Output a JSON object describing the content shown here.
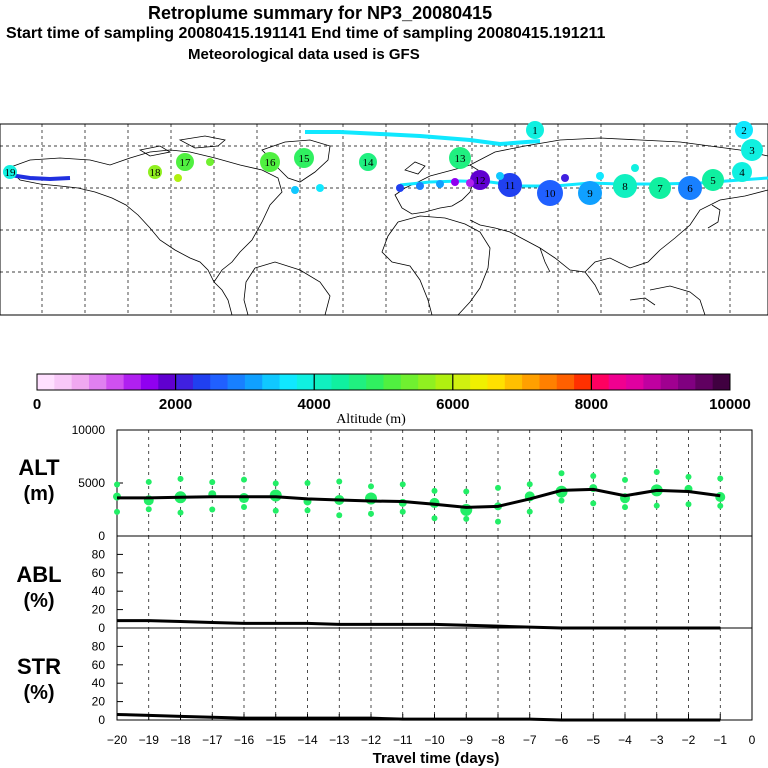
{
  "header": {
    "title": "Retroplume summary for NP3_20080415",
    "sampling_line": "Start time of sampling 20080415.191141     End time of sampling 20080415.191211",
    "met_line": "Meteorological data used is GFS"
  },
  "colorbar": {
    "label": "Altitude (m)",
    "ticks": [
      "0",
      "2000",
      "4000",
      "6000",
      "8000",
      "10000"
    ],
    "colors": [
      "#ffe0ff",
      "#f8c8f8",
      "#f0a8f0",
      "#e080f0",
      "#d050f0",
      "#b020f0",
      "#9000f0",
      "#6000d0",
      "#4020e0",
      "#2040f0",
      "#2060ff",
      "#1880ff",
      "#10a0ff",
      "#10c8ff",
      "#10e8ff",
      "#10f0e0",
      "#10f0c0",
      "#10f0a0",
      "#20f080",
      "#30f060",
      "#50f040",
      "#70f030",
      "#90f020",
      "#b0f010",
      "#d0f010",
      "#f0f000",
      "#ffe000",
      "#ffc000",
      "#ffa000",
      "#ff8000",
      "#ff6000",
      "#ff3000",
      "#ff0060",
      "#f00090",
      "#e000a0",
      "#c000a0",
      "#a00090",
      "#800080",
      "#600060",
      "#400040"
    ]
  },
  "map": {
    "trajectory_labels": [
      "19",
      "18",
      "17",
      "16",
      "15",
      "14",
      "13",
      "12",
      "11",
      "10",
      "9",
      "8",
      "7",
      "6",
      "5",
      "4",
      "3",
      "2",
      "1"
    ]
  },
  "chart_data": [
    {
      "type": "line",
      "title": "ALT",
      "ylabel": "ALT",
      "yunit": "(m)",
      "ylim": [
        0,
        10000
      ],
      "yticks": [
        "10000",
        "5000",
        "0"
      ],
      "x": [
        -20,
        -19,
        -18,
        -17,
        -16,
        -15,
        -14,
        -13,
        -12,
        -11,
        -10,
        -9,
        -8,
        -7,
        -6,
        -5,
        -4,
        -3,
        -2,
        -1
      ],
      "values": [
        3600,
        3600,
        3650,
        3700,
        3700,
        3700,
        3500,
        3400,
        3300,
        3250,
        3000,
        2700,
        2800,
        3500,
        4300,
        4400,
        3800,
        4300,
        4200,
        3800
      ],
      "scatter_color": "#22ee66",
      "line_color": "#000000"
    },
    {
      "type": "line",
      "title": "ABL",
      "ylabel": "ABL",
      "yunit": "(%)",
      "ylim": [
        0,
        100
      ],
      "yticks": [
        "80",
        "60",
        "40",
        "20",
        "0"
      ],
      "x": [
        -20,
        -19,
        -18,
        -17,
        -16,
        -15,
        -14,
        -13,
        -12,
        -11,
        -10,
        -9,
        -8,
        -7,
        -6,
        -5,
        -4,
        -3,
        -2,
        -1
      ],
      "values": [
        8,
        8,
        7,
        6,
        5,
        5,
        5,
        4,
        4,
        4,
        4,
        3,
        2,
        1,
        0,
        0,
        0,
        0,
        0,
        0
      ]
    },
    {
      "type": "line",
      "title": "STR",
      "ylabel": "STR",
      "yunit": "(%)",
      "ylim": [
        0,
        100
      ],
      "yticks": [
        "80",
        "60",
        "40",
        "20",
        "0"
      ],
      "x": [
        -20,
        -19,
        -18,
        -17,
        -16,
        -15,
        -14,
        -13,
        -12,
        -11,
        -10,
        -9,
        -8,
        -7,
        -6,
        -5,
        -4,
        -3,
        -2,
        -1
      ],
      "values": [
        6,
        5,
        4,
        3,
        2,
        2,
        2,
        2,
        2,
        1,
        1,
        1,
        1,
        1,
        0,
        0,
        0,
        0,
        0,
        0
      ]
    }
  ],
  "xaxis": {
    "label": "Travel time (days)",
    "ticks": [
      "−20",
      "−19",
      "−18",
      "−17",
      "−16",
      "−15",
      "−14",
      "−13",
      "−12",
      "−11",
      "−10",
      "−9",
      "−8",
      "−7",
      "−6",
      "−5",
      "−4",
      "−3",
      "−2",
      "−1",
      "0"
    ]
  }
}
